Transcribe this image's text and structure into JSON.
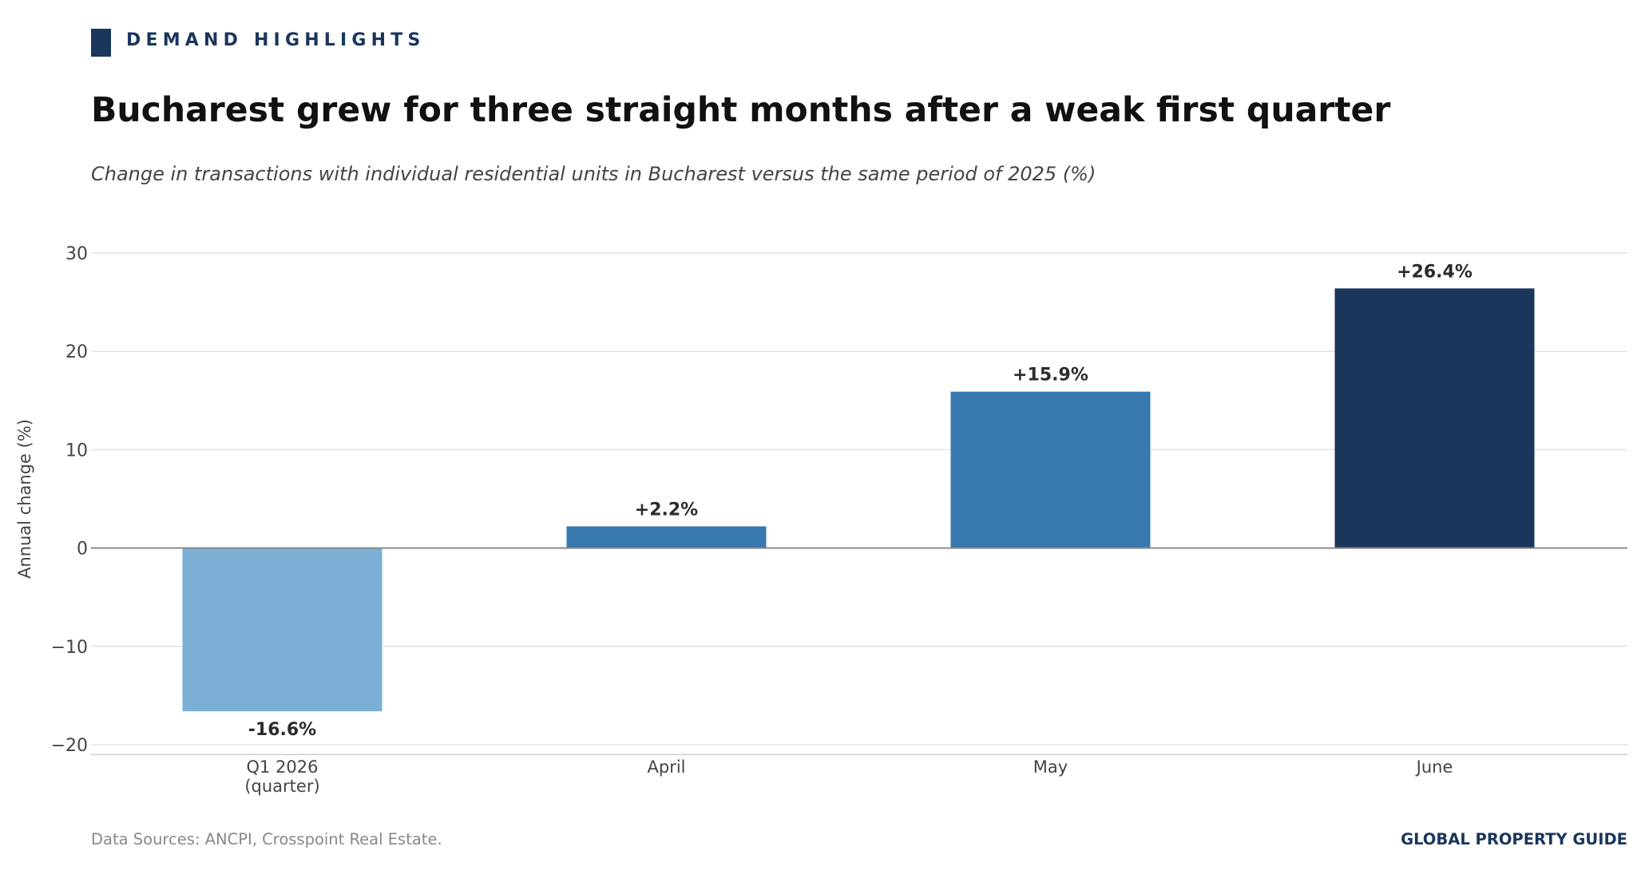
{
  "header": {
    "kicker": "DEMAND HIGHLIGHTS",
    "title": "Bucharest grew for three straight months after a weak first quarter",
    "subtitle": "Change in transactions with individual residential units in Bucharest versus the same period of 2025 (%)"
  },
  "footer": {
    "source": "Data Sources: ANCPI, Crosspoint Real Estate.",
    "brand": "GLOBAL PROPERTY GUIDE"
  },
  "colors": {
    "brand": "#1a365d",
    "q1_bar": "#7bafd4",
    "month_bar": "#3778ae",
    "june_bar": "#1a365d"
  },
  "chart_data": {
    "type": "bar",
    "categories": [
      [
        "Q1 2026",
        "(quarter)"
      ],
      [
        "April"
      ],
      [
        "May"
      ],
      [
        "June"
      ]
    ],
    "values": [
      -16.6,
      2.2,
      15.9,
      26.4
    ],
    "data_labels": [
      "-16.6%",
      "+2.2%",
      "+15.9%",
      "+26.4%"
    ],
    "bar_colors": [
      "#7bafd4",
      "#3778ae",
      "#3778ae",
      "#1a365d"
    ],
    "ylabel": "Annual change (%)",
    "ylim": [
      -21,
      30
    ],
    "yticks": [
      30,
      20,
      10,
      0,
      -10,
      -20
    ],
    "ytick_labels": [
      "30",
      "20",
      "10",
      "0",
      "−10",
      "−20"
    ],
    "grid": true
  }
}
